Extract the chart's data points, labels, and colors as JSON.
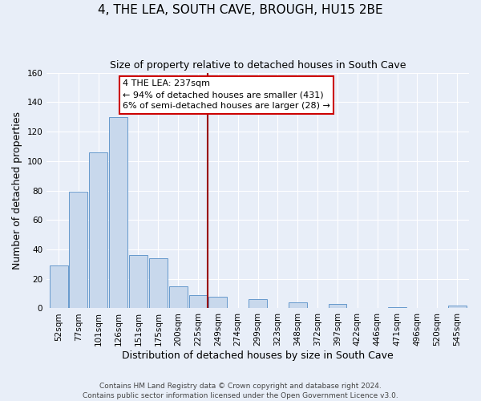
{
  "title": "4, THE LEA, SOUTH CAVE, BROUGH, HU15 2BE",
  "subtitle": "Size of property relative to detached houses in South Cave",
  "xlabel": "Distribution of detached houses by size in South Cave",
  "ylabel": "Number of detached properties",
  "bar_labels": [
    "52sqm",
    "77sqm",
    "101sqm",
    "126sqm",
    "151sqm",
    "175sqm",
    "200sqm",
    "225sqm",
    "249sqm",
    "274sqm",
    "299sqm",
    "323sqm",
    "348sqm",
    "372sqm",
    "397sqm",
    "422sqm",
    "446sqm",
    "471sqm",
    "496sqm",
    "520sqm",
    "545sqm"
  ],
  "bar_values": [
    29,
    79,
    106,
    130,
    36,
    34,
    15,
    9,
    8,
    0,
    6,
    0,
    4,
    0,
    3,
    0,
    0,
    1,
    0,
    0,
    2
  ],
  "bar_color": "#c8d8ec",
  "bar_edge_color": "#6699cc",
  "ylim": [
    0,
    160
  ],
  "yticks": [
    0,
    20,
    40,
    60,
    80,
    100,
    120,
    140,
    160
  ],
  "vline_color": "#990000",
  "annotation_title": "4 THE LEA: 237sqm",
  "annotation_line1": "← 94% of detached houses are smaller (431)",
  "annotation_line2": "6% of semi-detached houses are larger (28) →",
  "annotation_box_facecolor": "#ffffff",
  "annotation_box_edgecolor": "#cc0000",
  "footer_line1": "Contains HM Land Registry data © Crown copyright and database right 2024.",
  "footer_line2": "Contains public sector information licensed under the Open Government Licence v3.0.",
  "background_color": "#e8eef8",
  "grid_color": "#ffffff",
  "title_fontsize": 11,
  "subtitle_fontsize": 9,
  "axis_label_fontsize": 9,
  "tick_fontsize": 7.5,
  "annotation_fontsize": 8,
  "footer_fontsize": 6.5
}
